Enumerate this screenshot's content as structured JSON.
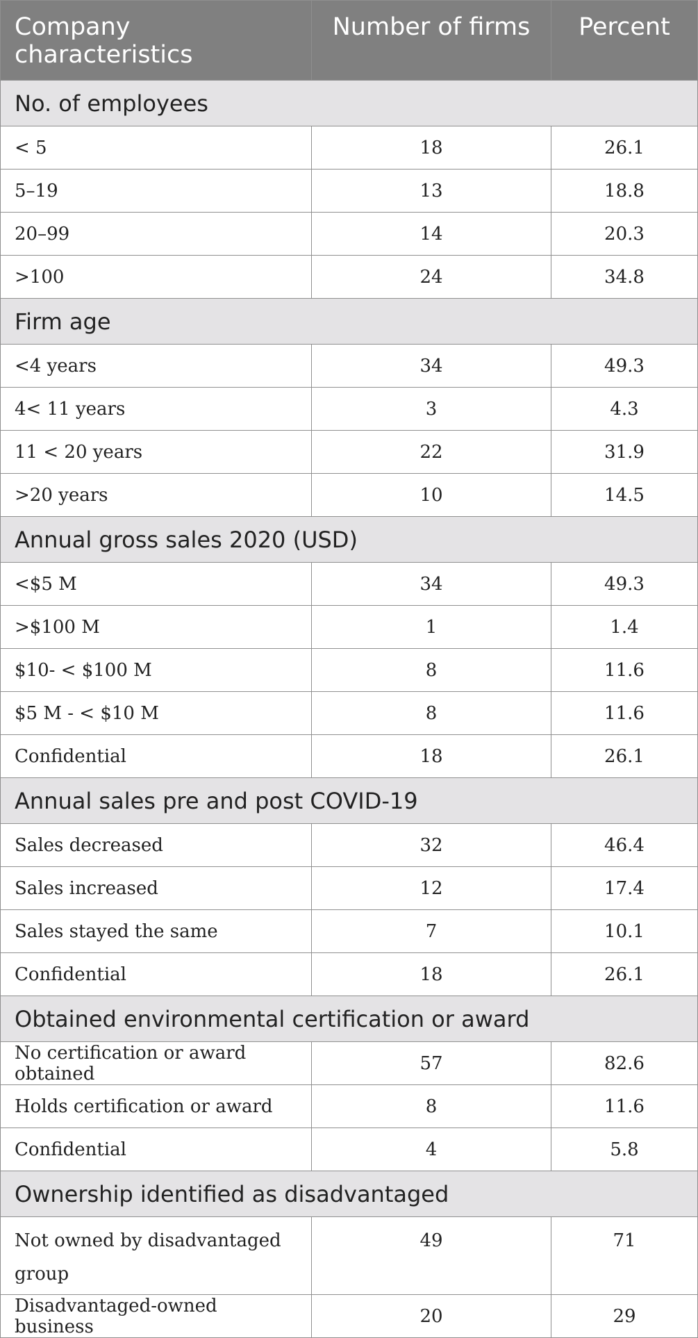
{
  "header": {
    "col1": "Company characteristics",
    "col2": "Number of firms",
    "col3": "Percent"
  },
  "sections": [
    {
      "title": "No. of employees",
      "rows": [
        {
          "label": "< 5",
          "firms": "18",
          "percent": "26.1"
        },
        {
          "label": "5–19",
          "firms": "13",
          "percent": "18.8"
        },
        {
          "label": "20–99",
          "firms": "14",
          "percent": "20.3"
        },
        {
          "label": ">100",
          "firms": "24",
          "percent": "34.8"
        }
      ]
    },
    {
      "title": "Firm age",
      "rows": [
        {
          "label": "<4 years",
          "firms": "34",
          "percent": "49.3"
        },
        {
          "label": "4< 11 years",
          "firms": "3",
          "percent": "4.3"
        },
        {
          "label": "11 < 20 years",
          "firms": "22",
          "percent": "31.9"
        },
        {
          "label": ">20 years",
          "firms": "10",
          "percent": "14.5"
        }
      ]
    },
    {
      "title": "Annual gross sales 2020 (USD)",
      "rows": [
        {
          "label": "<$5 M",
          "firms": "34",
          "percent": "49.3"
        },
        {
          "label": ">$100 M",
          "firms": "1",
          "percent": "1.4"
        },
        {
          "label": "$10- < $100 M",
          "firms": "8",
          "percent": "11.6"
        },
        {
          "label": "$5 M - < $10 M",
          "firms": "8",
          "percent": "11.6"
        },
        {
          "label": "Confidential",
          "firms": "18",
          "percent": "26.1"
        }
      ]
    },
    {
      "title": "Annual sales pre and post COVID-19",
      "rows": [
        {
          "label": "Sales decreased",
          "firms": "32",
          "percent": "46.4"
        },
        {
          "label": "Sales increased",
          "firms": "12",
          "percent": "17.4"
        },
        {
          "label": "Sales stayed the same",
          "firms": "7",
          "percent": "10.1"
        },
        {
          "label": "Confidential",
          "firms": "18",
          "percent": "26.1"
        }
      ]
    },
    {
      "title": "Obtained environmental certification or award",
      "rows": [
        {
          "label": "No certification or award obtained",
          "firms": "57",
          "percent": "82.6"
        },
        {
          "label": "Holds certification or award",
          "firms": "8",
          "percent": "11.6"
        },
        {
          "label": "Confidential",
          "firms": "4",
          "percent": "5.8"
        }
      ]
    },
    {
      "title": "Ownership identified as disadvantaged",
      "rows": [
        {
          "label": "Not owned by disadvantaged group",
          "firms": "49",
          "percent": "71"
        },
        {
          "label": "Disadvantaged-owned business",
          "firms": "20",
          "percent": "29"
        }
      ]
    }
  ]
}
